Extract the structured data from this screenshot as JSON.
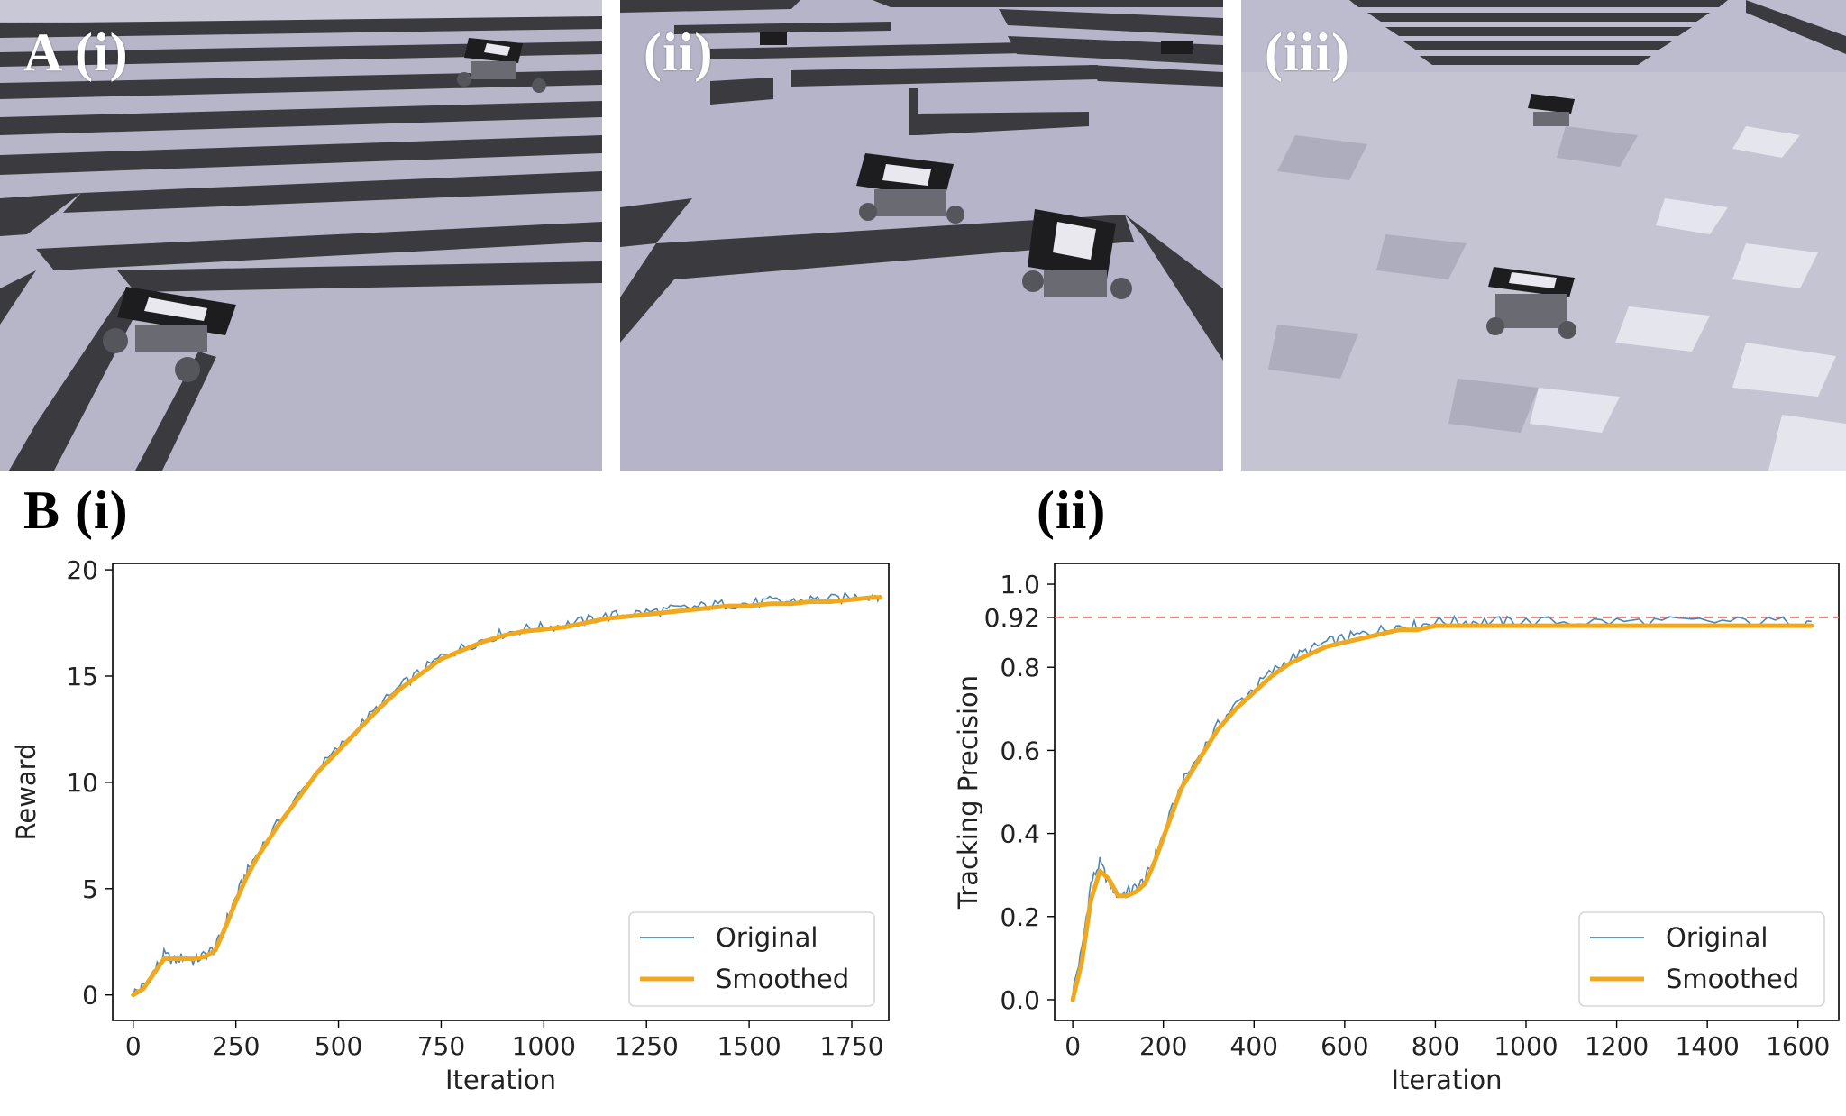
{
  "panel_a": {
    "label_i": "A (i)",
    "label_ii": "(ii)",
    "label_iii": "(iii)",
    "scenes": [
      "stairs",
      "walls",
      "rough-terrain"
    ]
  },
  "panel_b": {
    "label_i": "B (i)",
    "label_ii": "(ii)"
  },
  "colors": {
    "original": "#4a86b8",
    "smoothed": "#f2a81d",
    "threshold": "#e07a70",
    "terrain": "#b4b4c8",
    "step_face": "#3a3a3f"
  },
  "chart_data": [
    {
      "type": "line",
      "title": "",
      "xlabel": "Iteration",
      "ylabel": "Reward",
      "xlim": [
        -50,
        1840
      ],
      "ylim": [
        -1.2,
        20.3
      ],
      "xticks": [
        0,
        250,
        500,
        750,
        1000,
        1250,
        1500,
        1750
      ],
      "yticks": [
        0,
        5,
        10,
        15,
        20
      ],
      "legend": {
        "placement": "lower-right",
        "entries": [
          "Original",
          "Smoothed"
        ]
      },
      "grid": false,
      "series": [
        {
          "name": "Original",
          "x": [
            0,
            25,
            50,
            75,
            100,
            125,
            150,
            175,
            200,
            225,
            250,
            275,
            300,
            350,
            400,
            450,
            500,
            550,
            600,
            650,
            700,
            750,
            800,
            850,
            900,
            950,
            1000,
            1050,
            1100,
            1150,
            1200,
            1250,
            1300,
            1350,
            1400,
            1450,
            1500,
            1550,
            1600,
            1650,
            1700,
            1750,
            1800,
            1820
          ],
          "y": [
            0.1,
            0.4,
            1.1,
            1.9,
            1.6,
            1.8,
            1.6,
            1.9,
            2.2,
            3.4,
            4.6,
            5.7,
            6.6,
            8.0,
            9.3,
            10.6,
            11.6,
            12.6,
            13.6,
            14.5,
            15.2,
            15.9,
            16.3,
            16.7,
            17.0,
            17.2,
            17.3,
            17.4,
            17.6,
            17.8,
            17.9,
            18.0,
            18.1,
            18.2,
            18.3,
            18.4,
            18.4,
            18.5,
            18.5,
            18.6,
            18.6,
            18.7,
            18.8,
            18.8
          ]
        },
        {
          "name": "Smoothed",
          "x": [
            0,
            25,
            50,
            75,
            100,
            125,
            150,
            175,
            200,
            225,
            250,
            275,
            300,
            350,
            400,
            450,
            500,
            550,
            600,
            650,
            700,
            750,
            800,
            850,
            900,
            950,
            1000,
            1050,
            1100,
            1150,
            1200,
            1250,
            1300,
            1350,
            1400,
            1450,
            1500,
            1550,
            1600,
            1650,
            1700,
            1750,
            1800,
            1820
          ],
          "y": [
            0.0,
            0.3,
            1.0,
            1.7,
            1.7,
            1.7,
            1.7,
            1.8,
            2.1,
            3.2,
            4.4,
            5.5,
            6.4,
            7.9,
            9.2,
            10.5,
            11.5,
            12.5,
            13.5,
            14.4,
            15.1,
            15.8,
            16.2,
            16.6,
            16.9,
            17.1,
            17.2,
            17.3,
            17.5,
            17.7,
            17.8,
            17.9,
            18.0,
            18.1,
            18.2,
            18.3,
            18.3,
            18.4,
            18.4,
            18.5,
            18.5,
            18.6,
            18.7,
            18.7
          ]
        }
      ]
    },
    {
      "type": "line",
      "title": "",
      "xlabel": "Iteration",
      "ylabel": "Tracking Precision",
      "xlim": [
        -40,
        1690
      ],
      "ylim": [
        -0.05,
        1.05
      ],
      "xticks": [
        0,
        200,
        400,
        600,
        800,
        1000,
        1200,
        1400,
        1600
      ],
      "yticks": [
        0.0,
        0.2,
        0.4,
        0.6,
        0.8,
        0.92,
        1.0
      ],
      "ytick_labels": [
        "0.0",
        "0.2",
        "0.4",
        "0.6",
        "0.8",
        "0.92",
        "1.0"
      ],
      "reference_line": {
        "y": 0.92,
        "style": "dashed"
      },
      "legend": {
        "placement": "lower-right",
        "entries": [
          "Original",
          "Smoothed"
        ]
      },
      "grid": false,
      "series": [
        {
          "name": "Original",
          "x": [
            0,
            20,
            40,
            60,
            80,
            100,
            120,
            140,
            160,
            180,
            200,
            240,
            280,
            320,
            360,
            400,
            440,
            480,
            520,
            560,
            600,
            640,
            680,
            720,
            760,
            800,
            850,
            900,
            950,
            1000,
            1100,
            1200,
            1300,
            1400,
            1500,
            1600,
            1630
          ],
          "y": [
            0.02,
            0.12,
            0.28,
            0.33,
            0.28,
            0.25,
            0.26,
            0.27,
            0.29,
            0.34,
            0.4,
            0.52,
            0.59,
            0.66,
            0.71,
            0.75,
            0.79,
            0.82,
            0.84,
            0.86,
            0.87,
            0.88,
            0.89,
            0.9,
            0.9,
            0.91,
            0.91,
            0.91,
            0.91,
            0.91,
            0.91,
            0.91,
            0.91,
            0.91,
            0.91,
            0.91,
            0.91
          ]
        },
        {
          "name": "Smoothed",
          "x": [
            0,
            20,
            40,
            60,
            80,
            100,
            120,
            140,
            160,
            180,
            200,
            240,
            280,
            320,
            360,
            400,
            440,
            480,
            520,
            560,
            600,
            640,
            680,
            720,
            760,
            800,
            850,
            900,
            950,
            1000,
            1100,
            1200,
            1300,
            1400,
            1500,
            1600,
            1630
          ],
          "y": [
            0.0,
            0.09,
            0.24,
            0.31,
            0.29,
            0.25,
            0.25,
            0.26,
            0.28,
            0.33,
            0.39,
            0.51,
            0.58,
            0.65,
            0.7,
            0.74,
            0.78,
            0.81,
            0.83,
            0.85,
            0.86,
            0.87,
            0.88,
            0.89,
            0.89,
            0.9,
            0.9,
            0.9,
            0.9,
            0.9,
            0.9,
            0.9,
            0.9,
            0.9,
            0.9,
            0.9,
            0.9
          ]
        }
      ]
    }
  ]
}
